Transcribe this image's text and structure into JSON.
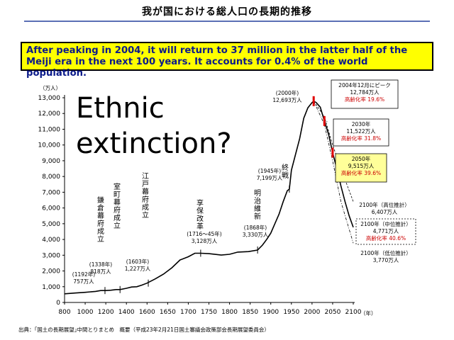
{
  "page_title": "我が国における総人口の長期的推移",
  "headline": "After peaking in 2004, it will return to 37 million in the latter half of the Meiji era in the next 100 years. It accounts for 0.4% of the world population.",
  "overlay_text": "Ethnic extinction?",
  "source_note": "出典：｢国土の長期展望｣中間とりまとめ　概要（平成23年2月21日国土審議会政策部会長期展望委員会）",
  "colors": {
    "headline_bg": "#ffff00",
    "headline_text": "#0b1a8a",
    "aging_rate_text": "#cc0000",
    "marker": "#e00000",
    "callout_2050_bg": "#ffff99"
  },
  "chart_data": {
    "type": "line",
    "ylabel": "（万人）",
    "xlabel": "（年）",
    "xlim": [
      800,
      2100
    ],
    "ylim": [
      0,
      13000
    ],
    "x_ticks": [
      "800",
      "1000",
      "1200",
      "1400",
      "1600",
      "1650",
      "1700",
      "1750",
      "1800",
      "1850",
      "1900",
      "1950",
      "2000",
      "2050",
      "2100"
    ],
    "y_ticks": [
      "0",
      "1,000",
      "2,000",
      "3,000",
      "4,000",
      "5,000",
      "6,000",
      "7,000",
      "8,000",
      "9,000",
      "10,000",
      "11,000",
      "12,000",
      "13,000"
    ],
    "grid": false,
    "series": [
      {
        "values": [
          [
            800,
            551
          ],
          [
            900,
            600
          ],
          [
            1000,
            644
          ],
          [
            1100,
            700
          ],
          [
            1150,
            757
          ],
          [
            1200,
            757
          ],
          [
            1250,
            780
          ],
          [
            1300,
            818
          ],
          [
            1338,
            818
          ],
          [
            1400,
            900
          ],
          [
            1450,
            980
          ],
          [
            1500,
            1000
          ],
          [
            1550,
            1100
          ],
          [
            1600,
            1227
          ],
          [
            1620,
            1500
          ],
          [
            1640,
            1800
          ],
          [
            1660,
            2200
          ],
          [
            1680,
            2700
          ],
          [
            1700,
            2900
          ],
          [
            1716,
            3128
          ],
          [
            1730,
            3128
          ],
          [
            1750,
            3100
          ],
          [
            1780,
            3010
          ],
          [
            1800,
            3060
          ],
          [
            1820,
            3200
          ],
          [
            1846,
            3230
          ],
          [
            1868,
            3330
          ],
          [
            1880,
            3650
          ],
          [
            1890,
            4000
          ],
          [
            1900,
            4400
          ],
          [
            1910,
            5000
          ],
          [
            1920,
            5600
          ],
          [
            1930,
            6400
          ],
          [
            1940,
            7100
          ],
          [
            1945,
            7199
          ],
          [
            1950,
            8400
          ],
          [
            1960,
            9400
          ],
          [
            1970,
            10400
          ],
          [
            1980,
            11700
          ],
          [
            1990,
            12360
          ],
          [
            2000,
            12693
          ],
          [
            2004,
            12784
          ],
          [
            2010,
            12700
          ],
          [
            2020,
            12400
          ],
          [
            2030,
            11522
          ],
          [
            2040,
            10700
          ],
          [
            2050,
            9515
          ],
          [
            2060,
            8500
          ],
          [
            2070,
            7400
          ],
          [
            2080,
            6400
          ],
          [
            2090,
            5500
          ],
          [
            2100,
            4771
          ]
        ]
      },
      {
        "values": [
          [
            2004,
            12784
          ],
          [
            2030,
            11800
          ],
          [
            2050,
            10000
          ],
          [
            2070,
            8500
          ],
          [
            2100,
            6407
          ]
        ]
      },
      {
        "values": [
          [
            2004,
            12784
          ],
          [
            2030,
            11300
          ],
          [
            2050,
            9000
          ],
          [
            2070,
            6400
          ],
          [
            2100,
            3770
          ]
        ]
      }
    ],
    "annotations": [
      {
        "label_lines": [
          "(1192年)",
          "757万人"
        ],
        "vertical_label": "鎌倉幕府成立",
        "x": 1192,
        "y": 757
      },
      {
        "label_lines": [
          "(1338年)",
          "818万人"
        ],
        "vertical_label": "室町幕府成立",
        "x": 1338,
        "y": 818
      },
      {
        "label_lines": [
          "(1603年)",
          "1,227万人"
        ],
        "vertical_label": "江戸幕府成立",
        "x": 1603,
        "y": 1227
      },
      {
        "label_lines": [
          "(1716～45年)",
          "3,128万人"
        ],
        "vertical_label": "享保改革",
        "x": 1730,
        "y": 3128
      },
      {
        "label_lines": [
          "(1868年)",
          "3,330万人"
        ],
        "vertical_label": "明治維新",
        "x": 1868,
        "y": 3330
      },
      {
        "label_lines": [
          "(1945年)",
          "7,199万人"
        ],
        "vertical_label": "終戦",
        "x": 1945,
        "y": 7199
      },
      {
        "label_lines": [
          "(2000年)",
          "12,693万人"
        ],
        "vertical_label": "",
        "x": 2000,
        "y": 12693
      }
    ],
    "callouts": [
      {
        "lines": [
          "2004年12月にピーク",
          "12,784万人"
        ],
        "rate": "高齢化率 19.6%",
        "x": 2004,
        "y": 12784
      },
      {
        "lines": [
          "2030年",
          "11,522万人"
        ],
        "rate": "高齢化率 31.8%",
        "x": 2030,
        "y": 11522
      },
      {
        "lines": [
          "2050年",
          "9,515万人"
        ],
        "rate": "高齢化率 39.6%",
        "x": 2050,
        "y": 9515
      },
      {
        "lines": [
          "2100年（高位推計）",
          "6,407万人"
        ],
        "rate": "",
        "x": 2100,
        "y": 6407
      },
      {
        "lines": [
          "2100年（中位推計）",
          "4,771万人"
        ],
        "rate": "高齢化率 40.6%",
        "x": 2100,
        "y": 4771
      },
      {
        "lines": [
          "2100年（低位推計）",
          "3,770万人"
        ],
        "rate": "",
        "x": 2100,
        "y": 3770
      }
    ]
  }
}
